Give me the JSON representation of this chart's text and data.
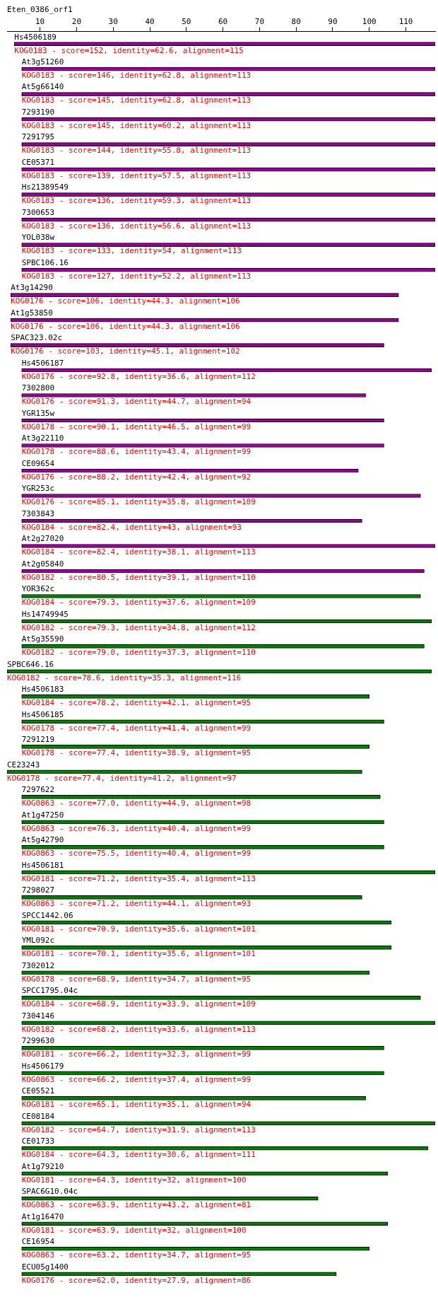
{
  "chart_data": {
    "type": "bar",
    "orientation": "horizontal",
    "title": "Eten_0386_orf1",
    "categories": [
      "Hs4506189",
      "At3g51260",
      "At5g66140",
      "7293190",
      "7291795",
      "CE05371",
      "Hs21389549",
      "7300653",
      "YOL038w",
      "SPBC106.16",
      "At3g14290",
      "At1g53850",
      "SPAC323.02c",
      "Hs4506187",
      "7302800",
      "YGR135w",
      "At3g22110",
      "CE09654",
      "YGR253c",
      "7303843",
      "At2g27020",
      "At2g05840",
      "YOR362c",
      "Hs14749945",
      "At5g35590",
      "SPBC646.16",
      "Hs4506183",
      "Hs4506185",
      "7291219",
      "CE23243",
      "7297622",
      "At1g47250",
      "At5g42790",
      "Hs4506181",
      "7298027",
      "SPCC1442.06",
      "YML092c",
      "7302012",
      "SPCC1795.04c",
      "7304146",
      "7299630",
      "Hs4506179",
      "CE05521",
      "CE08184",
      "CE01733",
      "At1g79210",
      "SPAC6G10.04c",
      "At1g16470",
      "CE16954",
      "ECU05g1400"
    ],
    "base": [
      3,
      5,
      5,
      5,
      5,
      5,
      5,
      5,
      5,
      5,
      2,
      2,
      2,
      5,
      5,
      5,
      5,
      5,
      5,
      5,
      5,
      5,
      5,
      5,
      5,
      1,
      5,
      5,
      5,
      1,
      5,
      5,
      5,
      5,
      5,
      5,
      5,
      5,
      5,
      5,
      5,
      5,
      5,
      5,
      5,
      5,
      5,
      5,
      5,
      5
    ],
    "values": [
      115,
      113,
      113,
      113,
      113,
      113,
      113,
      113,
      113,
      113,
      106,
      106,
      102,
      112,
      94,
      99,
      99,
      92,
      109,
      93,
      113,
      110,
      109,
      112,
      110,
      116,
      95,
      99,
      95,
      97,
      98,
      99,
      99,
      113,
      93,
      101,
      101,
      95,
      109,
      113,
      99,
      99,
      94,
      113,
      111,
      100,
      81,
      100,
      95,
      86
    ],
    "colors": [
      "#990099",
      "#990099",
      "#990099",
      "#990099",
      "#990099",
      "#990099",
      "#990099",
      "#990099",
      "#990099",
      "#990099",
      "#990099",
      "#990099",
      "#990099",
      "#990099",
      "#990099",
      "#990099",
      "#990099",
      "#990099",
      "#990099",
      "#990099",
      "#990099",
      "#990099",
      "#008000",
      "#008000",
      "#008000",
      "#008000",
      "#008000",
      "#008000",
      "#008000",
      "#008000",
      "#008000",
      "#008000",
      "#008000",
      "#008000",
      "#008000",
      "#008000",
      "#008000",
      "#008000",
      "#008000",
      "#008000",
      "#008000",
      "#008000",
      "#008000",
      "#008000",
      "#008000",
      "#008000",
      "#008000",
      "#008000",
      "#008000",
      "#008000"
    ],
    "value_labels": [
      "KOG0183 - score=152, identity=62.6, alignment=115",
      "KOG0183 - score=146, identity=62.8, alignment=113",
      "KOG0183 - score=145, identity=62.8, alignment=113",
      "KOG0183 - score=145, identity=60.2, alignment=113",
      "KOG0183 - score=144, identity=55.8, alignment=113",
      "KOG0183 - score=139, identity=57.5, alignment=113",
      "KOG0183 - score=136, identity=59.3, alignment=113",
      "KOG0183 - score=136, identity=56.6, alignment=113",
      "KOG0183 - score=133, identity=54, alignment=113",
      "KOG0183 - score=127, identity=52.2, alignment=113",
      "KOG0176 - score=106, identity=44.3, alignment=106",
      "KOG0176 - score=106, identity=44.3, alignment=106",
      "KOG0176 - score=103, identity=45.1, alignment=102",
      "KOG0176 - score=92.8, identity=36.6, alignment=112",
      "KOG0176 - score=91.3, identity=44.7, alignment=94",
      "KOG0178 - score=90.1, identity=46.5, alignment=99",
      "KOG0178 - score=88.6, identity=43.4, alignment=99",
      "KOG0176 - score=88.2, identity=42.4, alignment=92",
      "KOG0176 - score=85.1, identity=35.8, alignment=109",
      "KOG0184 - score=82.4, identity=43, alignment=93",
      "KOG0184 - score=82.4, identity=38.1, alignment=113",
      "KOG0182 - score=80.5, identity=39.1, alignment=110",
      "KOG0184 - score=79.3, identity=37.6, alignment=109",
      "KOG0182 - score=79.3, identity=34.8, alignment=112",
      "KOG0182 - score=79.0, identity=37.3, alignment=110",
      "KOG0182 - score=78.6, identity=35.3, alignment=116",
      "KOG0184 - score=78.2, identity=42.1, alignment=95",
      "KOG0178 - score=77.4, identity=41.4, alignment=99",
      "KOG0178 - score=77.4, identity=38.9, alignment=95",
      "KOG0178 - score=77.4, identity=41.2, alignment=97",
      "KOG0863 - score=77.0, identity=44.9, alignment=98",
      "KOG0863 - score=76.3, identity=40.4, alignment=99",
      "KOG0863 - score=75.5, identity=40.4, alignment=99",
      "KOG0181 - score=71.2, identity=35.4, alignment=113",
      "KOG0863 - score=71.2, identity=44.1, alignment=93",
      "KOG0181 - score=70.9, identity=35.6, alignment=101",
      "KOG0181 - score=70.1, identity=35.6, alignment=101",
      "KOG0178 - score=68.9, identity=34.7, alignment=95",
      "KOG0184 - score=68.9, identity=33.9, alignment=109",
      "KOG0182 - score=68.2, identity=33.6, alignment=113",
      "KOG0181 - score=66.2, identity=32.3, alignment=99",
      "KOG0863 - score=66.2, identity=37.4, alignment=99",
      "KOG0181 - score=65.1, identity=35.1, alignment=94",
      "KOG0182 - score=64.7, identity=31.9, alignment=113",
      "KOG0184 - score=64.3, identity=30.6, alignment=111",
      "KOG0181 - score=64.3, identity=32, alignment=100",
      "KOG0863 - score=63.9, identity=43.2, alignment=81",
      "KOG0181 - score=63.9, identity=32, alignment=100",
      "KOG0863 - score=63.2, identity=34.7, alignment=95",
      "KOG0176 - score=62.0, identity=27.9, alignment=86"
    ],
    "xlim": [
      1,
      118
    ],
    "xticks": [
      10,
      20,
      30,
      40,
      50,
      60,
      70,
      80,
      90,
      100,
      110
    ],
    "grid": false,
    "legend": false
  }
}
